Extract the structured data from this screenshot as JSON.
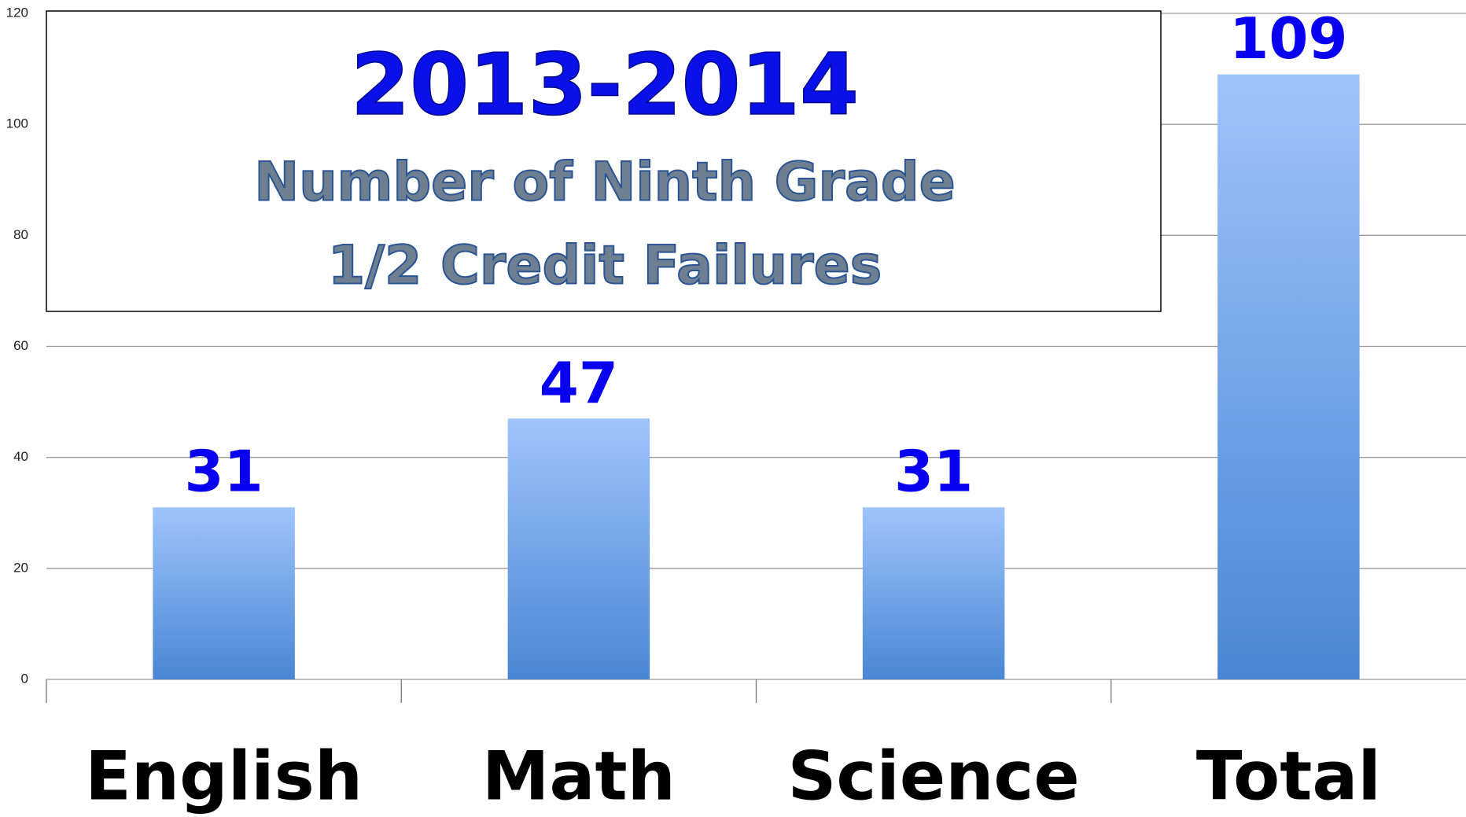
{
  "chart_data": {
    "type": "bar",
    "title": "2013-2014",
    "subtitle": [
      "Number of Ninth Grade",
      "1/2 Credit Failures"
    ],
    "categories": [
      "English",
      "Math",
      "Science",
      "Total"
    ],
    "values": [
      31,
      47,
      31,
      109
    ],
    "color": "#4a86d4",
    "ylim": [
      0,
      120
    ],
    "yticks": [
      0,
      20,
      40,
      60,
      80,
      100,
      120
    ],
    "grid": true
  }
}
